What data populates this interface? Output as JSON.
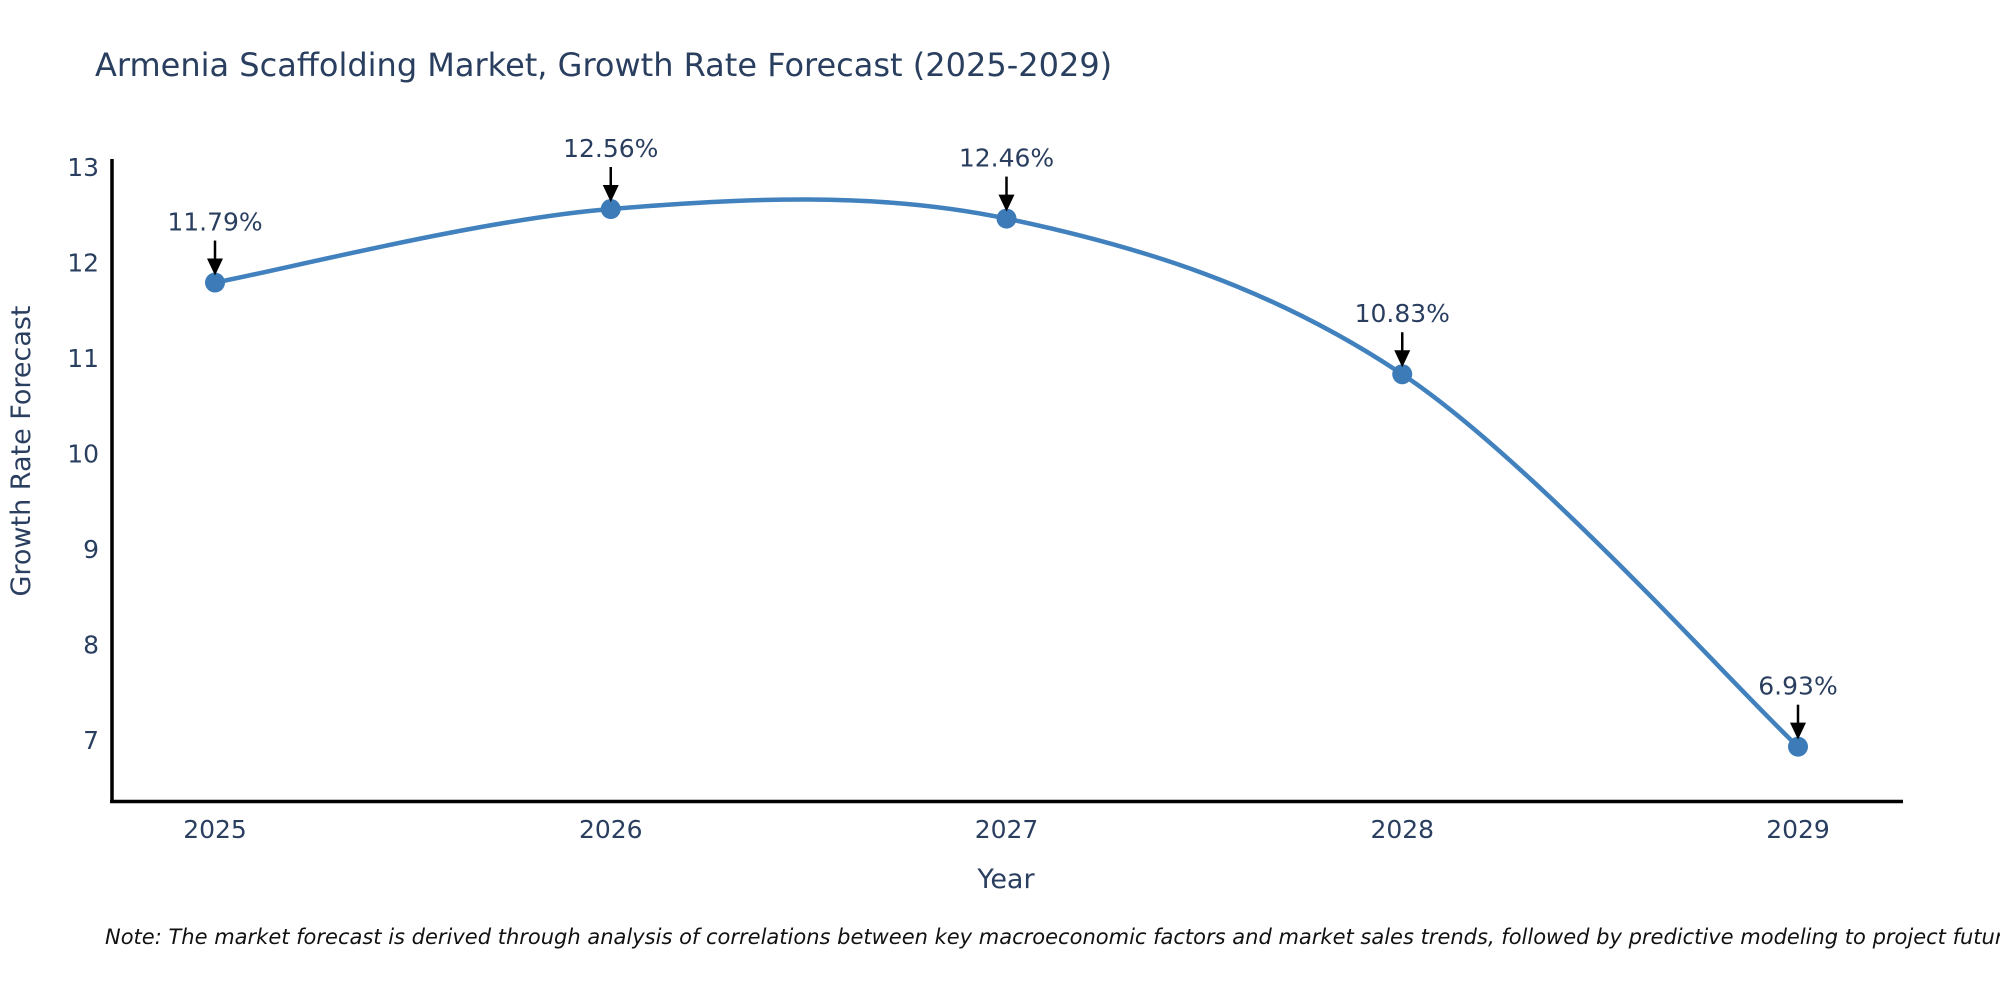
{
  "note": "Note: The market forecast is derived through analysis of correlations between key macroeconomic factors and market sales trends, followed by predictive modeling to project future sales",
  "chart_data": {
    "type": "line",
    "title": "Armenia Scaffolding Market, Growth Rate Forecast (2025-2029)",
    "xlabel": "Year",
    "ylabel": "Growth Rate Forecast",
    "x": [
      2025,
      2026,
      2027,
      2028,
      2029
    ],
    "x_tick_labels": [
      "2025",
      "2026",
      "2027",
      "2028",
      "2029"
    ],
    "values": [
      11.79,
      12.56,
      12.46,
      10.83,
      6.93
    ],
    "point_labels": [
      "11.79%",
      "12.56%",
      "12.46%",
      "10.83%",
      "6.93%"
    ],
    "y_ticks": [
      13,
      12,
      11,
      10,
      9,
      8,
      7
    ],
    "ylim": [
      6.35,
      13.07
    ],
    "xlim": [
      2023.95,
      2029.95
    ],
    "line_shape": "spline",
    "grid": false,
    "legend": "none",
    "colors": {
      "line": "#4181bd",
      "marker": "#3c7bb8",
      "axis_line": "#000000",
      "chart_text": "#2a3f5f",
      "annotation_text": "#2a3f5f",
      "arrow": "#000000",
      "note_text": "#111111",
      "background": "#ffffff"
    }
  }
}
